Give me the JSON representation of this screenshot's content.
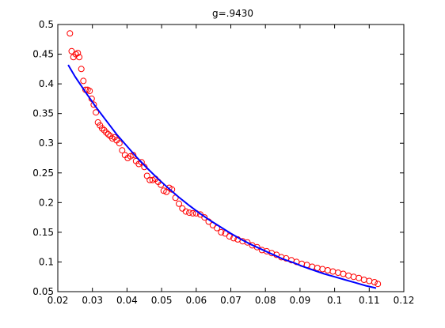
{
  "chart_data": {
    "type": "scatter",
    "title": "g=.9430",
    "xlabel": "",
    "ylabel": "",
    "xlim": [
      0.02,
      0.12
    ],
    "ylim": [
      0.05,
      0.5
    ],
    "grid": false,
    "xticks": [
      "0.02",
      "0.03",
      "0.04",
      "0.05",
      "0.06",
      "0.07",
      "0.08",
      "0.09",
      "0.1",
      "0.11",
      "0.12"
    ],
    "yticks": [
      "0.05",
      "0.1",
      "0.15",
      "0.2",
      "0.25",
      "0.3",
      "0.35",
      "0.4",
      "0.45",
      "0.5"
    ],
    "series": [
      {
        "kind": "scatter",
        "marker": "circle-open",
        "color": "#ff0000",
        "x": [
          0.0235,
          0.024,
          0.0245,
          0.0252,
          0.0258,
          0.0262,
          0.0268,
          0.0274,
          0.028,
          0.0286,
          0.0292,
          0.0298,
          0.0304,
          0.031,
          0.0316,
          0.0322,
          0.0328,
          0.0334,
          0.034,
          0.0346,
          0.0352,
          0.0358,
          0.0364,
          0.037,
          0.0378,
          0.0386,
          0.0394,
          0.0402,
          0.041,
          0.0418,
          0.0426,
          0.0434,
          0.0442,
          0.045,
          0.0458,
          0.0466,
          0.0474,
          0.0482,
          0.049,
          0.0498,
          0.0506,
          0.0514,
          0.0522,
          0.053,
          0.054,
          0.055,
          0.056,
          0.057,
          0.058,
          0.059,
          0.06,
          0.0612,
          0.0624,
          0.0636,
          0.0648,
          0.066,
          0.0672,
          0.0684,
          0.0696,
          0.0708,
          0.072,
          0.0734,
          0.0748,
          0.0762,
          0.0776,
          0.079,
          0.0804,
          0.0818,
          0.0832,
          0.0846,
          0.086,
          0.0875,
          0.089,
          0.0905,
          0.092,
          0.0935,
          0.095,
          0.0965,
          0.098,
          0.0995,
          0.101,
          0.1025,
          0.104,
          0.1055,
          0.107,
          0.1085,
          0.11,
          0.1115,
          0.1125
        ],
        "y": [
          0.485,
          0.455,
          0.445,
          0.45,
          0.452,
          0.445,
          0.425,
          0.405,
          0.39,
          0.39,
          0.388,
          0.375,
          0.365,
          0.352,
          0.335,
          0.33,
          0.325,
          0.322,
          0.318,
          0.315,
          0.312,
          0.308,
          0.31,
          0.305,
          0.3,
          0.288,
          0.28,
          0.275,
          0.278,
          0.28,
          0.27,
          0.265,
          0.268,
          0.26,
          0.245,
          0.238,
          0.238,
          0.24,
          0.235,
          0.23,
          0.22,
          0.218,
          0.225,
          0.222,
          0.208,
          0.198,
          0.19,
          0.185,
          0.183,
          0.182,
          0.182,
          0.18,
          0.175,
          0.168,
          0.162,
          0.157,
          0.15,
          0.148,
          0.143,
          0.14,
          0.138,
          0.135,
          0.133,
          0.128,
          0.125,
          0.12,
          0.118,
          0.115,
          0.112,
          0.108,
          0.106,
          0.103,
          0.1,
          0.097,
          0.095,
          0.092,
          0.09,
          0.088,
          0.086,
          0.084,
          0.082,
          0.08,
          0.077,
          0.075,
          0.073,
          0.07,
          0.068,
          0.066,
          0.063
        ]
      },
      {
        "kind": "line",
        "color": "#0000ff",
        "x": [
          0.023,
          0.025,
          0.028,
          0.031,
          0.034,
          0.037,
          0.04,
          0.043,
          0.046,
          0.049,
          0.052,
          0.055,
          0.058,
          0.061,
          0.064,
          0.067,
          0.07,
          0.073,
          0.076,
          0.079,
          0.082,
          0.085,
          0.088,
          0.091,
          0.094,
          0.097,
          0.1,
          0.103,
          0.106,
          0.109,
          0.112
        ],
        "y": [
          0.432,
          0.412,
          0.386,
          0.361,
          0.338,
          0.315,
          0.295,
          0.275,
          0.257,
          0.24,
          0.224,
          0.209,
          0.195,
          0.182,
          0.17,
          0.159,
          0.148,
          0.138,
          0.129,
          0.121,
          0.113,
          0.105,
          0.099,
          0.092,
          0.086,
          0.08,
          0.075,
          0.07,
          0.065,
          0.06,
          0.056
        ]
      }
    ]
  }
}
